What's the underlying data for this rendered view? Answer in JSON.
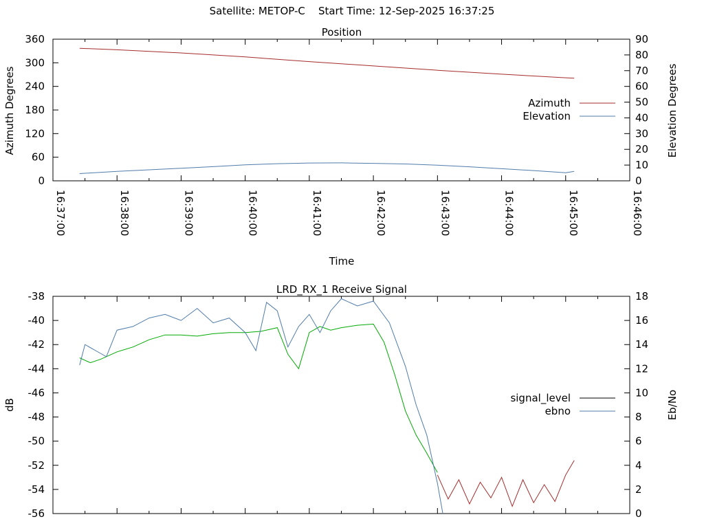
{
  "header": {
    "satellite": "Satellite: METOP-C",
    "start_time": "Start Time: 12-Sep-2025 16:37:25"
  },
  "chart_data": [
    {
      "type": "line",
      "title": "Position",
      "xlabel": "Time",
      "ylabel": "Azimuth Degrees",
      "y2label": "Elevation Degrees",
      "xlim": [
        "16:37:00",
        "16:46:00"
      ],
      "x_ticks": [
        "16:37:00",
        "16:38:00",
        "16:39:00",
        "16:40:00",
        "16:41:00",
        "16:42:00",
        "16:43:00",
        "16:44:00",
        "16:45:00",
        "16:46:00"
      ],
      "ylim": [
        0,
        360
      ],
      "y_ticks": [
        "0",
        "60",
        "120",
        "180",
        "240",
        "300",
        "360"
      ],
      "y2lim": [
        0,
        90
      ],
      "y2_ticks": [
        "0",
        "10",
        "20",
        "30",
        "40",
        "50",
        "60",
        "70",
        "80",
        "90"
      ],
      "legend_position": "right",
      "series": [
        {
          "name": "Azimuth",
          "axis": "y",
          "color": "#a52a2a",
          "x": [
            "16:37:25",
            "16:38:00",
            "16:39:00",
            "16:40:00",
            "16:41:00",
            "16:42:00",
            "16:43:00",
            "16:44:00",
            "16:45:00",
            "16:45:08"
          ],
          "values": [
            337,
            333,
            325,
            315,
            303,
            292,
            281,
            271,
            262,
            261
          ]
        },
        {
          "name": "Elevation",
          "axis": "y2",
          "color": "#4f7bab",
          "x": [
            "16:37:25",
            "16:38:00",
            "16:38:30",
            "16:39:00",
            "16:39:30",
            "16:40:00",
            "16:40:30",
            "16:41:00",
            "16:41:30",
            "16:42:00",
            "16:42:30",
            "16:43:00",
            "16:43:30",
            "16:44:00",
            "16:44:30",
            "16:45:00",
            "16:45:08"
          ],
          "values": [
            4.6,
            6.0,
            7.0,
            8.0,
            9.0,
            10.2,
            10.9,
            11.3,
            11.4,
            11.1,
            10.7,
            9.9,
            8.9,
            7.7,
            6.5,
            5.1,
            6.0
          ]
        }
      ]
    },
    {
      "type": "line",
      "title": "LRD_RX_1 Receive Signal",
      "xlabel": "",
      "ylabel": "dB",
      "y2label": "Eb/No",
      "xlim": [
        "16:37:00",
        "16:46:00"
      ],
      "ylim": [
        -56,
        -38
      ],
      "y_ticks": [
        "-56",
        "-54",
        "-52",
        "-50",
        "-48",
        "-46",
        "-44",
        "-42",
        "-40",
        "-38"
      ],
      "y2lim": [
        0,
        18
      ],
      "y2_ticks": [
        "0",
        "2",
        "4",
        "6",
        "8",
        "10",
        "12",
        "14",
        "16",
        "18"
      ],
      "legend_position": "right",
      "legend": [
        {
          "name": "signal_level",
          "color": "#000000"
        },
        {
          "name": "ebno",
          "color": "#4f7bab"
        }
      ],
      "series": [
        {
          "name": "signal_level",
          "axis": "y",
          "color": "#00aa00",
          "x": [
            "16:37:25",
            "16:37:35",
            "16:37:45",
            "16:38:00",
            "16:38:15",
            "16:38:30",
            "16:38:45",
            "16:39:00",
            "16:39:15",
            "16:39:30",
            "16:39:45",
            "16:40:00",
            "16:40:15",
            "16:40:30",
            "16:40:40",
            "16:40:50",
            "16:41:00",
            "16:41:10",
            "16:41:20",
            "16:41:30",
            "16:41:45",
            "16:42:00",
            "16:42:10",
            "16:42:20",
            "16:42:30",
            "16:42:40",
            "16:42:50",
            "16:43:00"
          ],
          "values": [
            -43.1,
            -43.5,
            -43.2,
            -42.6,
            -42.2,
            -41.6,
            -41.2,
            -41.2,
            -41.3,
            -41.1,
            -41.0,
            -41.0,
            -40.9,
            -40.6,
            -42.8,
            -44.0,
            -41.0,
            -40.5,
            -40.8,
            -40.6,
            -40.4,
            -40.3,
            -41.8,
            -44.5,
            -47.5,
            -49.5,
            -51.0,
            -52.6
          ]
        },
        {
          "name": "signal_level",
          "axis": "y",
          "color": "#a52a2a",
          "x": [
            "16:43:00",
            "16:43:10",
            "16:43:20",
            "16:43:30",
            "16:43:40",
            "16:43:50",
            "16:44:00",
            "16:44:10",
            "16:44:20",
            "16:44:30",
            "16:44:40",
            "16:44:50",
            "16:45:00",
            "16:45:08"
          ],
          "values": [
            -52.8,
            -54.8,
            -53.2,
            -55.2,
            -53.4,
            -54.7,
            -53.0,
            -55.4,
            -53.2,
            -55.1,
            -53.6,
            -55.0,
            -52.8,
            -51.6
          ]
        },
        {
          "name": "ebno",
          "axis": "y2",
          "color": "#4f7bab",
          "x": [
            "16:37:25",
            "16:37:30",
            "16:37:40",
            "16:37:50",
            "16:38:00",
            "16:38:15",
            "16:38:30",
            "16:38:45",
            "16:39:00",
            "16:39:15",
            "16:39:30",
            "16:39:45",
            "16:40:00",
            "16:40:10",
            "16:40:20",
            "16:40:30",
            "16:40:40",
            "16:40:50",
            "16:41:00",
            "16:41:10",
            "16:41:20",
            "16:41:30",
            "16:41:45",
            "16:42:00",
            "16:42:15",
            "16:42:30",
            "16:42:40",
            "16:42:50",
            "16:43:00",
            "16:43:05"
          ],
          "values": [
            12.3,
            14.0,
            13.5,
            13.0,
            15.2,
            15.5,
            16.2,
            16.5,
            16.0,
            17.0,
            15.8,
            16.2,
            15.0,
            13.5,
            17.5,
            16.8,
            13.8,
            15.5,
            16.5,
            15.0,
            16.8,
            17.8,
            17.2,
            17.6,
            15.8,
            12.2,
            9.0,
            6.5,
            2.5,
            0.0
          ]
        }
      ]
    }
  ]
}
